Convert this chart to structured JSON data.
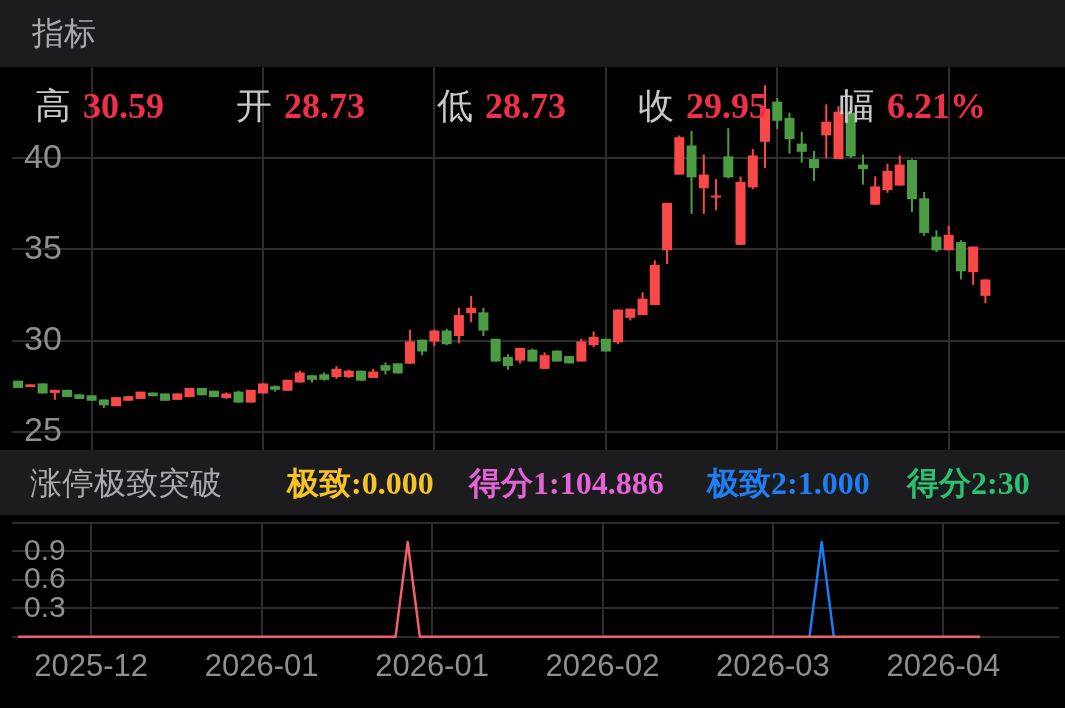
{
  "chart_data": [
    {
      "type": "candlestick",
      "title": "指标",
      "annotations": [
        "高 30.59",
        "开 28.73",
        "低 28.73",
        "收 29.95",
        "幅 6.21%"
      ],
      "categories": [
        null,
        null,
        null,
        null,
        null,
        null,
        "2025-12",
        null,
        null,
        null,
        null,
        null,
        null,
        null,
        null,
        null,
        null,
        null,
        null,
        null,
        "2026-01",
        null,
        null,
        null,
        null,
        null,
        null,
        null,
        null,
        null,
        null,
        null,
        null,
        null,
        "2026-01",
        null,
        null,
        null,
        null,
        null,
        null,
        null,
        null,
        null,
        null,
        null,
        null,
        null,
        "2026-02",
        null,
        null,
        null,
        null,
        null,
        null,
        null,
        null,
        null,
        null,
        null,
        null,
        null,
        "2026-03",
        null,
        null,
        null,
        null,
        null,
        null,
        null,
        null,
        null,
        null,
        null,
        null,
        null,
        "2026-04",
        null,
        null,
        null,
        null,
        null,
        null,
        null,
        null,
        null
      ],
      "ohlc": [
        [
          27.8,
          27.8,
          27.4,
          27.4
        ],
        [
          27.45,
          27.6,
          27.45,
          27.6
        ],
        [
          27.65,
          27.65,
          27.1,
          27.1
        ],
        [
          27.13,
          27.3,
          26.75,
          27.3
        ],
        [
          27.3,
          27.3,
          26.9,
          26.9
        ],
        [
          27.05,
          27.05,
          26.8,
          26.8
        ],
        [
          27.0,
          27.0,
          26.7,
          26.7
        ],
        [
          26.77,
          26.77,
          26.3,
          26.45
        ],
        [
          26.4,
          26.9,
          26.4,
          26.9
        ],
        [
          26.7,
          26.95,
          26.7,
          26.95
        ],
        [
          26.8,
          27.2,
          26.8,
          27.2
        ],
        [
          27.15,
          27.15,
          26.95,
          26.95
        ],
        [
          27.1,
          27.1,
          26.7,
          26.7
        ],
        [
          26.75,
          27.1,
          26.75,
          27.1
        ],
        [
          26.9,
          27.4,
          26.9,
          27.4
        ],
        [
          27.4,
          27.4,
          27.0,
          27.0
        ],
        [
          27.25,
          27.25,
          26.9,
          26.9
        ],
        [
          26.85,
          27.15,
          26.8,
          27.1
        ],
        [
          27.2,
          27.25,
          26.6,
          26.6
        ],
        [
          26.6,
          27.3,
          26.6,
          27.3
        ],
        [
          27.1,
          27.65,
          27.1,
          27.65
        ],
        [
          27.5,
          27.55,
          27.2,
          27.3
        ],
        [
          27.25,
          27.85,
          27.25,
          27.85
        ],
        [
          27.7,
          28.35,
          27.7,
          28.25
        ],
        [
          28.1,
          28.1,
          27.7,
          27.85
        ],
        [
          28.15,
          28.25,
          27.8,
          27.85
        ],
        [
          28.0,
          28.6,
          27.9,
          28.45
        ],
        [
          28.0,
          28.4,
          27.95,
          28.35
        ],
        [
          28.35,
          28.35,
          27.8,
          27.8
        ],
        [
          27.95,
          28.45,
          27.95,
          28.3
        ],
        [
          28.65,
          28.8,
          28.15,
          28.35
        ],
        [
          28.75,
          28.75,
          28.2,
          28.2
        ],
        [
          28.73,
          30.59,
          28.73,
          29.95
        ],
        [
          30.05,
          30.05,
          29.2,
          29.4
        ],
        [
          29.95,
          30.6,
          29.7,
          30.55
        ],
        [
          30.55,
          30.65,
          29.75,
          29.8
        ],
        [
          30.25,
          31.8,
          29.85,
          31.4
        ],
        [
          31.5,
          32.45,
          31.0,
          31.8
        ],
        [
          31.55,
          31.8,
          30.25,
          30.55
        ],
        [
          30.1,
          30.1,
          28.85,
          28.85
        ],
        [
          29.1,
          29.25,
          28.4,
          28.6
        ],
        [
          28.9,
          29.6,
          28.75,
          29.6
        ],
        [
          29.5,
          29.55,
          28.85,
          28.85
        ],
        [
          28.45,
          29.35,
          28.45,
          29.2
        ],
        [
          29.45,
          29.45,
          28.85,
          28.85
        ],
        [
          29.15,
          29.15,
          28.75,
          28.75
        ],
        [
          28.85,
          30.1,
          28.85,
          29.95
        ],
        [
          29.75,
          30.5,
          29.65,
          30.2
        ],
        [
          30.1,
          30.1,
          29.4,
          29.4
        ],
        [
          29.9,
          31.7,
          29.8,
          31.7
        ],
        [
          31.25,
          31.75,
          31.1,
          31.75
        ],
        [
          31.4,
          32.65,
          31.4,
          32.3
        ],
        [
          31.95,
          34.4,
          31.95,
          34.15
        ],
        [
          34.95,
          37.55,
          34.2,
          37.55
        ],
        [
          39.1,
          41.25,
          39.1,
          41.15
        ],
        [
          40.7,
          41.5,
          36.95,
          38.95
        ],
        [
          38.35,
          40.2,
          36.95,
          39.1
        ],
        [
          37.85,
          38.85,
          37.15,
          37.95
        ],
        [
          40.1,
          41.65,
          38.9,
          38.95
        ],
        [
          35.25,
          39.0,
          35.25,
          38.7
        ],
        [
          38.4,
          40.5,
          38.3,
          40.15
        ],
        [
          40.9,
          44.0,
          39.45,
          42.7
        ],
        [
          43.1,
          43.3,
          41.6,
          42.05
        ],
        [
          42.2,
          42.5,
          40.25,
          41.05
        ],
        [
          40.8,
          41.45,
          39.75,
          40.35
        ],
        [
          39.95,
          40.4,
          38.75,
          39.45
        ],
        [
          41.25,
          42.95,
          40.0,
          42.0
        ],
        [
          39.95,
          42.85,
          39.95,
          42.55
        ],
        [
          42.5,
          42.85,
          40.0,
          40.1
        ],
        [
          39.65,
          40.2,
          38.55,
          39.4
        ],
        [
          37.45,
          39.0,
          37.45,
          38.45
        ],
        [
          38.25,
          39.7,
          38.1,
          39.3
        ],
        [
          38.5,
          40.15,
          38.5,
          39.65
        ],
        [
          39.9,
          39.95,
          37.05,
          37.75
        ],
        [
          37.8,
          38.15,
          35.75,
          35.9
        ],
        [
          35.7,
          36.05,
          34.85,
          34.95
        ],
        [
          34.95,
          36.3,
          34.95,
          35.8
        ],
        [
          35.4,
          35.5,
          33.35,
          33.8
        ],
        [
          33.75,
          35.15,
          33.05,
          35.15
        ],
        [
          32.45,
          33.35,
          32.05,
          33.35
        ],
        null,
        null,
        null,
        null,
        null,
        null
      ],
      "colors": [
        "#4c9c44",
        "#f94848",
        "#4c9c44",
        "#f94848",
        "#4c9c44",
        "#4c9c44",
        "#4c9c44",
        "#4c9c44",
        "#f94848",
        "#f94848",
        "#f94848",
        "#4c9c44",
        "#4c9c44",
        "#f94848",
        "#f94848",
        "#4c9c44",
        "#4c9c44",
        "#f94848",
        "#4c9c44",
        "#f94848",
        "#f94848",
        "#4c9c44",
        "#f94848",
        "#f94848",
        "#4c9c44",
        "#4c9c44",
        "#f94848",
        "#f94848",
        "#4c9c44",
        "#f94848",
        "#4c9c44",
        "#4c9c44",
        "#f94848",
        "#4c9c44",
        "#f94848",
        "#4c9c44",
        "#f94848",
        "#f94848",
        "#4c9c44",
        "#4c9c44",
        "#4c9c44",
        "#f94848",
        "#4c9c44",
        "#f94848",
        "#4c9c44",
        "#4c9c44",
        "#f94848",
        "#f94848",
        "#4c9c44",
        "#f94848",
        "#f94848",
        "#f94848",
        "#f94848",
        "#f94848",
        "#f94848",
        "#4c9c44",
        "#f94848",
        "#f94848",
        "#4c9c44",
        "#f94848",
        "#f94848",
        "#f94848",
        "#4c9c44",
        "#4c9c44",
        "#4c9c44",
        "#4c9c44",
        "#f94848",
        "#f94848",
        "#4c9c44",
        "#4c9c44",
        "#f94848",
        "#f94848",
        "#f94848",
        "#4c9c44",
        "#4c9c44",
        "#4c9c44",
        "#f94848",
        "#4c9c44",
        "#f94848",
        "#f94848",
        null,
        null,
        null,
        null,
        null,
        null
      ],
      "ylim": [
        24,
        45
      ],
      "yticks": [
        25,
        30,
        35,
        40
      ],
      "grid": true,
      "tick_labels": "y"
    },
    {
      "type": "line",
      "title": "涨停极致突破",
      "annotations": [
        "极致:0.000",
        "得分1:104.886",
        "极致2:1.000",
        "得分2:30"
      ],
      "categories": [
        null,
        null,
        null,
        null,
        null,
        null,
        "2025-12",
        null,
        null,
        null,
        null,
        null,
        null,
        null,
        null,
        null,
        null,
        null,
        null,
        null,
        "2026-01",
        null,
        null,
        null,
        null,
        null,
        null,
        null,
        null,
        null,
        null,
        null,
        null,
        null,
        "2026-01",
        null,
        null,
        null,
        null,
        null,
        null,
        null,
        null,
        null,
        null,
        null,
        null,
        null,
        "2026-02",
        null,
        null,
        null,
        null,
        null,
        null,
        null,
        null,
        null,
        null,
        null,
        null,
        null,
        "2026-03",
        null,
        null,
        null,
        null,
        null,
        null,
        null,
        null,
        null,
        null,
        null,
        null,
        null,
        "2026-04",
        null,
        null,
        null,
        null,
        null,
        null,
        null,
        null,
        null
      ],
      "series": [
        {
          "color": "#f0606a",
          "values": [
            0,
            0,
            0,
            0,
            0,
            0,
            0,
            0,
            0,
            0,
            0,
            0,
            0,
            0,
            0,
            0,
            0,
            0,
            0,
            0,
            0,
            0,
            0,
            0,
            0,
            0,
            0,
            0,
            0,
            0,
            0,
            0,
            1,
            0,
            0,
            0,
            0,
            0,
            0,
            0,
            0,
            0,
            0,
            0,
            0,
            0,
            0,
            0,
            0,
            0,
            0,
            0,
            0,
            0,
            0,
            0,
            0,
            0,
            0,
            0,
            0,
            0,
            0,
            0,
            0,
            0,
            0,
            0,
            0,
            0,
            0,
            0,
            0,
            0,
            0,
            0,
            0,
            0,
            0,
            0,
            null,
            null,
            null,
            null,
            null,
            null
          ]
        },
        {
          "color": "#1a7cf5",
          "values": [
            null,
            null,
            null,
            null,
            null,
            null,
            null,
            null,
            null,
            null,
            null,
            null,
            null,
            null,
            null,
            null,
            null,
            null,
            null,
            null,
            null,
            null,
            null,
            null,
            null,
            null,
            null,
            null,
            null,
            null,
            null,
            null,
            null,
            null,
            null,
            null,
            null,
            null,
            null,
            null,
            null,
            null,
            null,
            null,
            null,
            null,
            null,
            null,
            null,
            null,
            null,
            null,
            null,
            null,
            null,
            null,
            null,
            null,
            null,
            null,
            null,
            null,
            null,
            null,
            null,
            0,
            1,
            0,
            null,
            null,
            null,
            null,
            null,
            null,
            null,
            null,
            null,
            null,
            null,
            null,
            null,
            null,
            null,
            null,
            null,
            null
          ]
        }
      ],
      "ylim": [
        0,
        1.2
      ],
      "yticks": [
        {
          "value": 0,
          "label": null
        },
        0.3,
        0.6,
        0.9,
        {
          "value": 1.2,
          "label": null
        }
      ],
      "grid": true,
      "marker": "none"
    }
  ]
}
